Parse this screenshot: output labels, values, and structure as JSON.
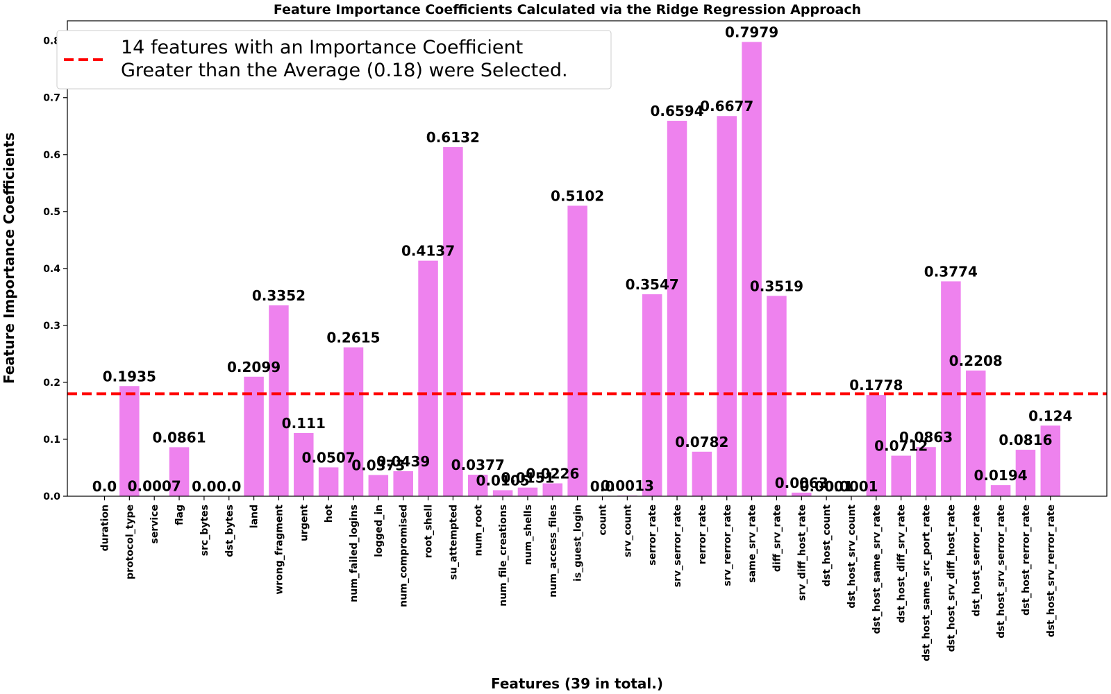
{
  "chart_data": {
    "type": "bar",
    "title": "Feature Importance Coefficients Calculated via the Ridge Regression Approach",
    "xlabel": "Features (39 in total.)",
    "ylabel": "Feature Importance Coefficients",
    "ylim": [
      0,
      0.835
    ],
    "yticks": [
      "0.0",
      "0.1",
      "0.2",
      "0.3",
      "0.4",
      "0.5",
      "0.6",
      "0.7",
      "0.8"
    ],
    "ytick_values": [
      0,
      0.1,
      0.2,
      0.3,
      0.4,
      0.5,
      0.6,
      0.7,
      0.8
    ],
    "bar_color": "#ee82ee",
    "threshold": {
      "value": 0.18,
      "color": "#ff0000"
    },
    "legend": {
      "placement": "top-left",
      "lines": [
        "14 features with an Importance Coefficient",
        "Greater than the Average (0.18) were Selected."
      ]
    },
    "categories": [
      "duration",
      "protocol_type",
      "service",
      "flag",
      "src_bytes",
      "dst_bytes",
      "land",
      "wrong_fragment",
      "urgent",
      "hot",
      "num_failed_logins",
      "logged_in",
      "num_compromised",
      "root_shell",
      "su_attempted",
      "num_root",
      "num_file_creations",
      "num_shells",
      "num_access_files",
      "is_guest_login",
      "count",
      "srv_count",
      "serror_rate",
      "srv_serror_rate",
      "rerror_rate",
      "srv_rerror_rate",
      "same_srv_rate",
      "diff_srv_rate",
      "srv_diff_host_rate",
      "dst_host_count",
      "dst_host_srv_count",
      "dst_host_same_srv_rate",
      "dst_host_diff_srv_rate",
      "dst_host_same_src_port_rate",
      "dst_host_srv_diff_host_rate",
      "dst_host_serror_rate",
      "dst_host_srv_serror_rate",
      "dst_host_rerror_rate",
      "dst_host_srv_rerror_rate"
    ],
    "values": [
      0.0,
      0.1935,
      0.0007,
      0.0861,
      0.0,
      0.0,
      0.2099,
      0.3352,
      0.111,
      0.0507,
      0.2615,
      0.0373,
      0.0439,
      0.4137,
      0.6132,
      0.0377,
      0.0105,
      0.0151,
      0.0226,
      0.5102,
      0.0,
      0.0013,
      0.3547,
      0.6594,
      0.0782,
      0.6677,
      0.7979,
      0.3519,
      0.0063,
      0.0001,
      0.0001,
      0.1778,
      0.0712,
      0.0863,
      0.3774,
      0.2208,
      0.0194,
      0.0816,
      0.124
    ],
    "data_labels": [
      "0.0",
      "0.1935",
      "0.0007",
      "0.0861",
      "0.0",
      "0.0",
      "0.2099",
      "0.3352",
      "0.111",
      "0.0507",
      "0.2615",
      "0.0373",
      "0.0439",
      "0.4137",
      "0.6132",
      "0.0377",
      "0.0105",
      "0.0151",
      "0.0226",
      "0.5102",
      "0.0",
      "0.0013",
      "0.3547",
      "0.6594",
      "0.0782",
      "0.6677",
      "0.7979",
      "0.3519",
      "0.0063",
      "0.0001",
      "0.0001",
      "0.1778",
      "0.0712",
      "0.0863",
      "0.3774",
      "0.2208",
      "0.0194",
      "0.0816",
      "0.124"
    ]
  }
}
